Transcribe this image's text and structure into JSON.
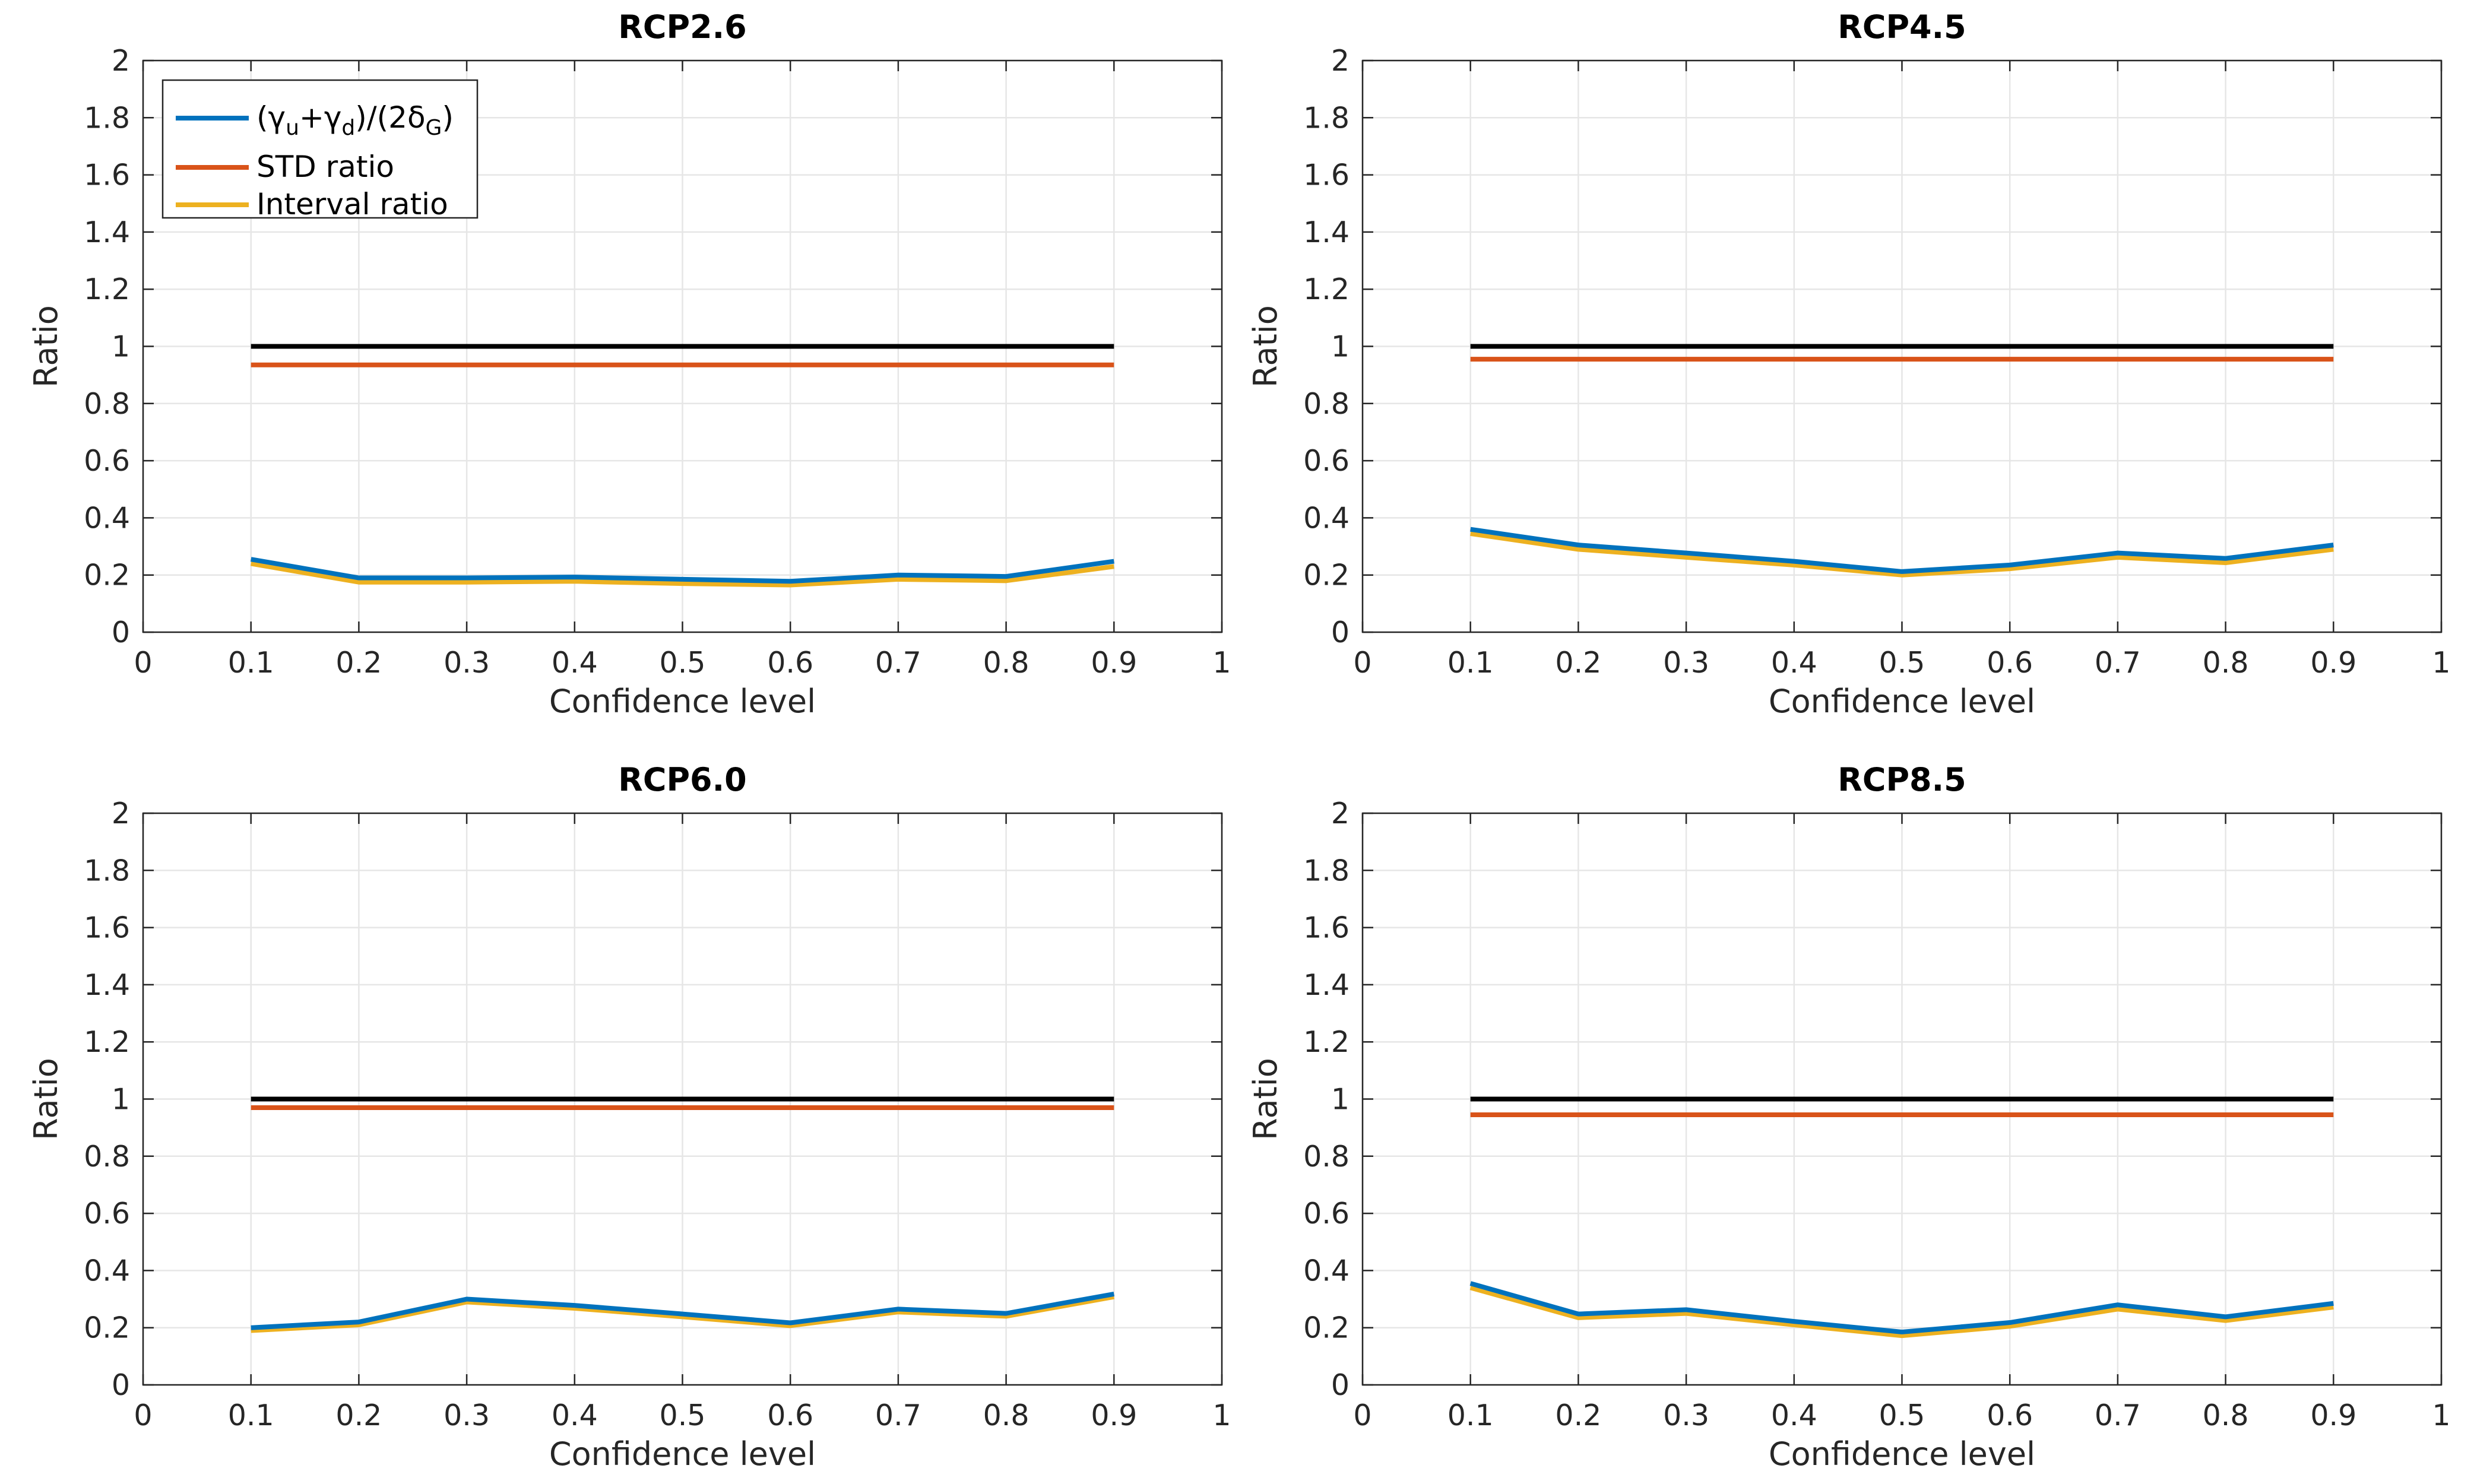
{
  "chart_data": [
    {
      "type": "line",
      "title": "RCP2.6",
      "xlabel": "Confidence level",
      "ylabel": "Ratio",
      "xlim": [
        0,
        1
      ],
      "ylim": [
        0,
        2
      ],
      "xticks": [
        "0",
        "0.1",
        "0.2",
        "0.3",
        "0.4",
        "0.5",
        "0.6",
        "0.7",
        "0.8",
        "0.9",
        "1"
      ],
      "yticks": [
        "0",
        "0.2",
        "0.4",
        "0.6",
        "0.8",
        "1",
        "1.2",
        "1.4",
        "1.6",
        "1.8",
        "2"
      ],
      "grid": true,
      "legend": {
        "position": "top-left",
        "entries": [
          {
            "label": "(γu+γd)/(2δG)",
            "series": "gamma"
          },
          {
            "label": "STD ratio",
            "series": "std"
          },
          {
            "label": "Interval ratio",
            "series": "interval"
          }
        ]
      },
      "x": [
        0.1,
        0.2,
        0.3,
        0.4,
        0.5,
        0.6,
        0.7,
        0.8,
        0.9
      ],
      "series": [
        {
          "name": "reference",
          "color": "#000000",
          "values": [
            1,
            1,
            1,
            1,
            1,
            1,
            1,
            1,
            1
          ]
        },
        {
          "name": "STD ratio",
          "color": "#d95319",
          "values": [
            0.935,
            0.935,
            0.935,
            0.935,
            0.935,
            0.935,
            0.935,
            0.935,
            0.935
          ]
        },
        {
          "name": "Interval ratio",
          "color": "#edb120",
          "values": [
            0.24,
            0.175,
            0.175,
            0.178,
            0.17,
            0.165,
            0.185,
            0.18,
            0.23
          ]
        },
        {
          "name": "(γu+γd)/(2δG)",
          "color": "#0072bd",
          "values": [
            0.255,
            0.19,
            0.19,
            0.193,
            0.185,
            0.178,
            0.2,
            0.195,
            0.248
          ]
        }
      ]
    },
    {
      "type": "line",
      "title": "RCP4.5",
      "xlabel": "Confidence level",
      "ylabel": "Ratio",
      "xlim": [
        0,
        1
      ],
      "ylim": [
        0,
        2
      ],
      "xticks": [
        "0",
        "0.1",
        "0.2",
        "0.3",
        "0.4",
        "0.5",
        "0.6",
        "0.7",
        "0.8",
        "0.9",
        "1"
      ],
      "yticks": [
        "0",
        "0.2",
        "0.4",
        "0.6",
        "0.8",
        "1",
        "1.2",
        "1.4",
        "1.6",
        "1.8",
        "2"
      ],
      "grid": true,
      "x": [
        0.1,
        0.2,
        0.3,
        0.4,
        0.5,
        0.6,
        0.7,
        0.8,
        0.9
      ],
      "series": [
        {
          "name": "reference",
          "color": "#000000",
          "values": [
            1,
            1,
            1,
            1,
            1,
            1,
            1,
            1,
            1
          ]
        },
        {
          "name": "STD ratio",
          "color": "#d95319",
          "values": [
            0.955,
            0.955,
            0.955,
            0.955,
            0.955,
            0.955,
            0.955,
            0.955,
            0.955
          ]
        },
        {
          "name": "Interval ratio",
          "color": "#edb120",
          "values": [
            0.345,
            0.29,
            0.262,
            0.235,
            0.2,
            0.222,
            0.262,
            0.243,
            0.29
          ]
        },
        {
          "name": "(γu+γd)/(2δG)",
          "color": "#0072bd",
          "values": [
            0.36,
            0.305,
            0.277,
            0.248,
            0.212,
            0.235,
            0.277,
            0.258,
            0.305
          ]
        }
      ]
    },
    {
      "type": "line",
      "title": "RCP6.0",
      "xlabel": "Confidence level",
      "ylabel": "Ratio",
      "xlim": [
        0,
        1
      ],
      "ylim": [
        0,
        2
      ],
      "xticks": [
        "0",
        "0.1",
        "0.2",
        "0.3",
        "0.4",
        "0.5",
        "0.6",
        "0.7",
        "0.8",
        "0.9",
        "1"
      ],
      "yticks": [
        "0",
        "0.2",
        "0.4",
        "0.6",
        "0.8",
        "1",
        "1.2",
        "1.4",
        "1.6",
        "1.8",
        "2"
      ],
      "grid": true,
      "x": [
        0.1,
        0.2,
        0.3,
        0.4,
        0.5,
        0.6,
        0.7,
        0.8,
        0.9
      ],
      "series": [
        {
          "name": "reference",
          "color": "#000000",
          "values": [
            1,
            1,
            1,
            1,
            1,
            1,
            1,
            1,
            1
          ]
        },
        {
          "name": "STD ratio",
          "color": "#d95319",
          "values": [
            0.97,
            0.97,
            0.97,
            0.97,
            0.97,
            0.97,
            0.97,
            0.97,
            0.97
          ]
        },
        {
          "name": "Interval ratio",
          "color": "#edb120",
          "values": [
            0.19,
            0.21,
            0.29,
            0.268,
            0.238,
            0.207,
            0.255,
            0.24,
            0.308
          ]
        },
        {
          "name": "(γu+γd)/(2δG)",
          "color": "#0072bd",
          "values": [
            0.2,
            0.22,
            0.3,
            0.278,
            0.248,
            0.217,
            0.265,
            0.25,
            0.318
          ]
        }
      ]
    },
    {
      "type": "line",
      "title": "RCP8.5",
      "xlabel": "Confidence level",
      "ylabel": "Ratio",
      "xlim": [
        0,
        1
      ],
      "ylim": [
        0,
        2
      ],
      "xticks": [
        "0",
        "0.1",
        "0.2",
        "0.3",
        "0.4",
        "0.5",
        "0.6",
        "0.7",
        "0.8",
        "0.9",
        "1"
      ],
      "yticks": [
        "0",
        "0.2",
        "0.4",
        "0.6",
        "0.8",
        "1",
        "1.2",
        "1.4",
        "1.6",
        "1.8",
        "2"
      ],
      "grid": true,
      "x": [
        0.1,
        0.2,
        0.3,
        0.4,
        0.5,
        0.6,
        0.7,
        0.8,
        0.9
      ],
      "series": [
        {
          "name": "reference",
          "color": "#000000",
          "values": [
            1,
            1,
            1,
            1,
            1,
            1,
            1,
            1,
            1
          ]
        },
        {
          "name": "STD ratio",
          "color": "#d95319",
          "values": [
            0.945,
            0.945,
            0.945,
            0.945,
            0.945,
            0.945,
            0.945,
            0.945,
            0.945
          ]
        },
        {
          "name": "Interval ratio",
          "color": "#edb120",
          "values": [
            0.34,
            0.235,
            0.25,
            0.21,
            0.172,
            0.205,
            0.265,
            0.225,
            0.272
          ]
        },
        {
          "name": "(γu+γd)/(2δG)",
          "color": "#0072bd",
          "values": [
            0.355,
            0.248,
            0.263,
            0.222,
            0.185,
            0.218,
            0.28,
            0.238,
            0.285
          ]
        }
      ]
    }
  ]
}
